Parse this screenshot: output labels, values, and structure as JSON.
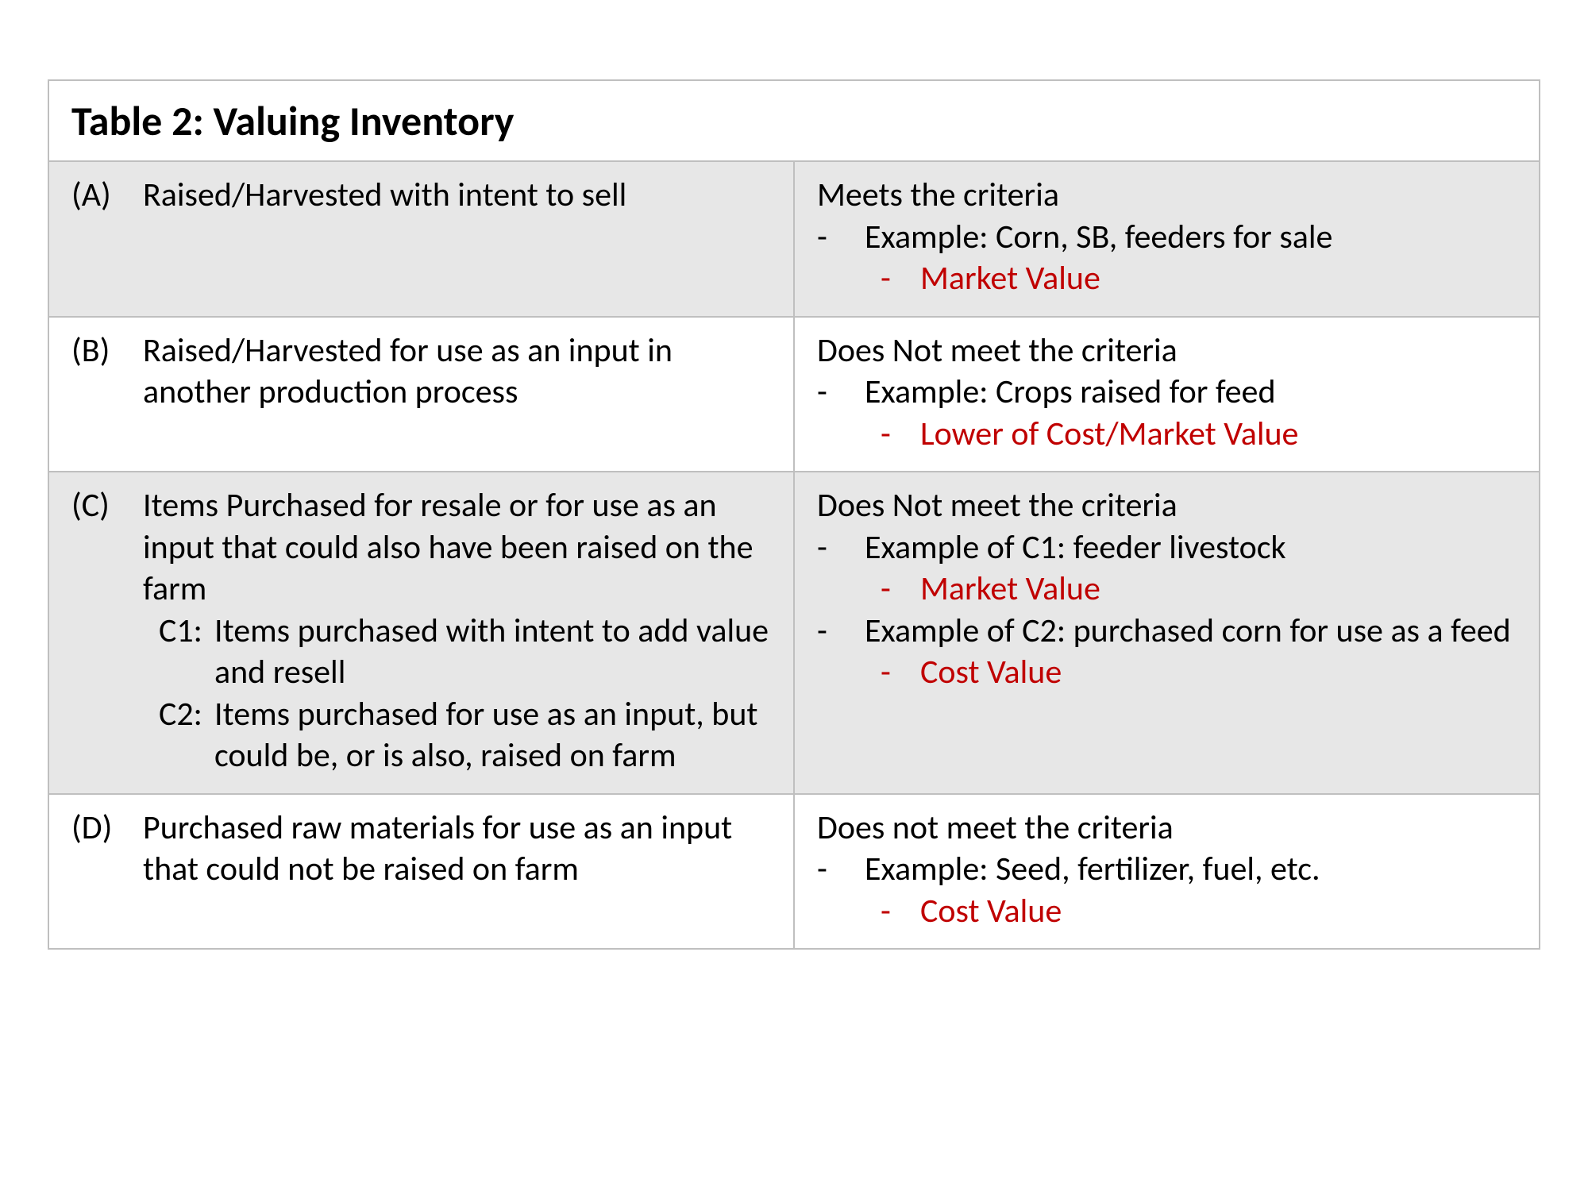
{
  "table": {
    "title": "Table 2: Valuing Inventory",
    "colors": {
      "border": "#bfbfbf",
      "shade_bg": "#e7e7e7",
      "plain_bg": "#ffffff",
      "text": "#000000",
      "accent_red": "#c00000"
    },
    "typography": {
      "title_fontsize_pt": 39,
      "title_weight": "bold",
      "body_fontsize_pt": 31.5,
      "font_family": "Calibri"
    },
    "columns": [
      "category",
      "criteria"
    ],
    "column_widths_pct": [
      50,
      50
    ],
    "rows": [
      {
        "shaded": true,
        "left": {
          "letter": "(A)",
          "text": "Raised/Harvested with intent to sell",
          "subitems": []
        },
        "right": {
          "heading": "Meets the criteria",
          "bullets": [
            {
              "text": "Example: Corn, SB, feeders for sale",
              "sub": [
                {
                  "text": "Market Value",
                  "red": true
                }
              ]
            }
          ]
        }
      },
      {
        "shaded": false,
        "left": {
          "letter": "(B)",
          "text": "Raised/Harvested for use as an input in another production process",
          "subitems": []
        },
        "right": {
          "heading": "Does Not meet the criteria",
          "bullets": [
            {
              "text": "Example: Crops raised for feed",
              "sub": [
                {
                  "text": "Lower of Cost/Market Value",
                  "red": true
                }
              ]
            }
          ]
        }
      },
      {
        "shaded": true,
        "left": {
          "letter": "(C)",
          "text": "Items Purchased for resale or for use as an input that could also have been raised on the farm",
          "subitems": [
            {
              "tag": "C1:",
              "text": "Items purchased with intent to add value and resell"
            },
            {
              "tag": "C2:",
              "text": "Items purchased for use as an input, but could be, or is also, raised on farm"
            }
          ]
        },
        "right": {
          "heading": "Does Not meet the criteria",
          "bullets": [
            {
              "text": "Example of C1: feeder livestock",
              "sub": [
                {
                  "text": "Market Value",
                  "red": true
                }
              ]
            },
            {
              "text": "Example of C2: purchased corn for use as a feed",
              "sub": [
                {
                  "text": "Cost Value",
                  "red": true
                }
              ]
            }
          ]
        }
      },
      {
        "shaded": false,
        "left": {
          "letter": "(D)",
          "text": "Purchased raw materials for use as an input that could not be raised on farm",
          "subitems": []
        },
        "right": {
          "heading": "Does not meet the criteria",
          "bullets": [
            {
              "text": "Example: Seed, fertilizer, fuel, etc.",
              "sub": [
                {
                  "text": "Cost Value",
                  "red": true
                }
              ]
            }
          ]
        }
      }
    ]
  }
}
